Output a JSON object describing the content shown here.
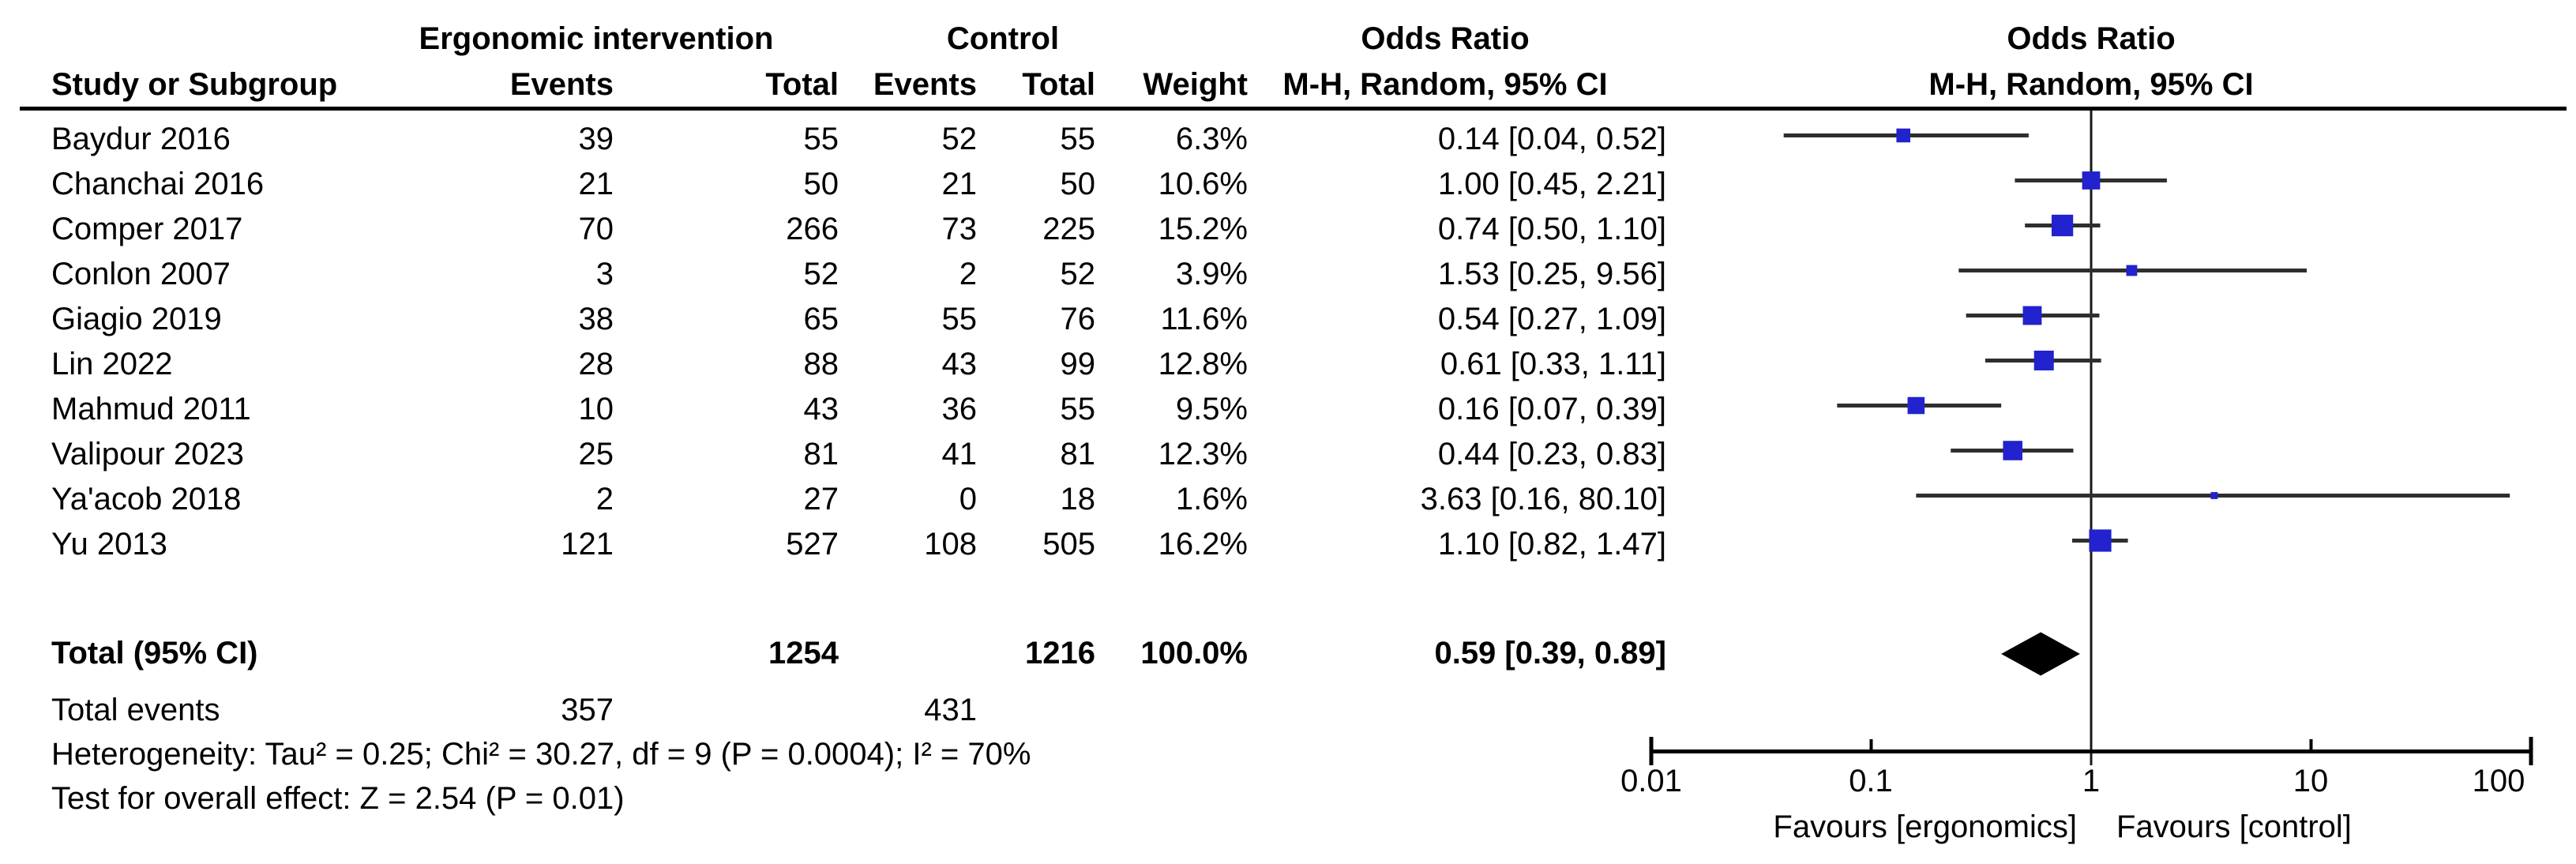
{
  "chart_data": {
    "type": "forest_plot",
    "effect_measure": "Odds Ratio",
    "model": "Mantel-Haenszel random effects",
    "headers": {
      "intervention_group": "Ergonomic intervention",
      "control_group": "Control",
      "odds_ratio_text_col": "Odds Ratio",
      "odds_ratio_plot_col": "Odds Ratio",
      "study": "Study or Subgroup",
      "events_1": "Events",
      "total_1": "Total",
      "events_2": "Events",
      "total_2": "Total",
      "weight": "Weight",
      "method_text_col": "M-H, Random, 95% CI",
      "method_plot_col": "M-H, Random, 95% CI"
    },
    "studies": [
      {
        "study": "Baydur 2016",
        "int_events": "39",
        "int_total": "55",
        "ctrl_events": "52",
        "ctrl_total": "55",
        "weight": "6.3%",
        "weight_pct": 6.3,
        "or": 0.14,
        "ci_low": 0.04,
        "ci_high": 0.52,
        "or_ci_text": "0.14 [0.04, 0.52]"
      },
      {
        "study": "Chanchai 2016",
        "int_events": "21",
        "int_total": "50",
        "ctrl_events": "21",
        "ctrl_total": "50",
        "weight": "10.6%",
        "weight_pct": 10.6,
        "or": 1.0,
        "ci_low": 0.45,
        "ci_high": 2.21,
        "or_ci_text": "1.00 [0.45, 2.21]"
      },
      {
        "study": "Comper 2017",
        "int_events": "70",
        "int_total": "266",
        "ctrl_events": "73",
        "ctrl_total": "225",
        "weight": "15.2%",
        "weight_pct": 15.2,
        "or": 0.74,
        "ci_low": 0.5,
        "ci_high": 1.1,
        "or_ci_text": "0.74 [0.50, 1.10]"
      },
      {
        "study": "Conlon 2007",
        "int_events": "3",
        "int_total": "52",
        "ctrl_events": "2",
        "ctrl_total": "52",
        "weight": "3.9%",
        "weight_pct": 3.9,
        "or": 1.53,
        "ci_low": 0.25,
        "ci_high": 9.56,
        "or_ci_text": "1.53 [0.25, 9.56]"
      },
      {
        "study": "Giagio 2019",
        "int_events": "38",
        "int_total": "65",
        "ctrl_events": "55",
        "ctrl_total": "76",
        "weight": "11.6%",
        "weight_pct": 11.6,
        "or": 0.54,
        "ci_low": 0.27,
        "ci_high": 1.09,
        "or_ci_text": "0.54 [0.27, 1.09]"
      },
      {
        "study": "Lin 2022",
        "int_events": "28",
        "int_total": "88",
        "ctrl_events": "43",
        "ctrl_total": "99",
        "weight": "12.8%",
        "weight_pct": 12.8,
        "or": 0.61,
        "ci_low": 0.33,
        "ci_high": 1.11,
        "or_ci_text": "0.61 [0.33, 1.11]"
      },
      {
        "study": "Mahmud 2011",
        "int_events": "10",
        "int_total": "43",
        "ctrl_events": "36",
        "ctrl_total": "55",
        "weight": "9.5%",
        "weight_pct": 9.5,
        "or": 0.16,
        "ci_low": 0.07,
        "ci_high": 0.39,
        "or_ci_text": "0.16 [0.07, 0.39]"
      },
      {
        "study": "Valipour 2023",
        "int_events": "25",
        "int_total": "81",
        "ctrl_events": "41",
        "ctrl_total": "81",
        "weight": "12.3%",
        "weight_pct": 12.3,
        "or": 0.44,
        "ci_low": 0.23,
        "ci_high": 0.83,
        "or_ci_text": "0.44 [0.23, 0.83]"
      },
      {
        "study": "Ya'acob 2018",
        "int_events": "2",
        "int_total": "27",
        "ctrl_events": "0",
        "ctrl_total": "18",
        "weight": "1.6%",
        "weight_pct": 1.6,
        "or": 3.63,
        "ci_low": 0.16,
        "ci_high": 80.1,
        "or_ci_text": "3.63 [0.16, 80.10]"
      },
      {
        "study": "Yu 2013",
        "int_events": "121",
        "int_total": "527",
        "ctrl_events": "108",
        "ctrl_total": "505",
        "weight": "16.2%",
        "weight_pct": 16.2,
        "or": 1.1,
        "ci_low": 0.82,
        "ci_high": 1.47,
        "or_ci_text": "1.10 [0.82, 1.47]"
      }
    ],
    "total_row": {
      "label": "Total (95% CI)",
      "int_total": "1254",
      "ctrl_total": "1216",
      "weight": "100.0%",
      "or": 0.59,
      "ci_low": 0.39,
      "ci_high": 0.89,
      "or_ci_text": "0.59 [0.39, 0.89]"
    },
    "total_events": {
      "label": "Total events",
      "int_events": "357",
      "ctrl_events": "431"
    },
    "footnotes": {
      "heterogeneity": "Heterogeneity: Tau² = 0.25; Chi² = 30.27, df = 9 (P = 0.0004); I² = 70%",
      "overall_effect": "Test for overall effect: Z = 2.54 (P = 0.01)"
    },
    "axis": {
      "scale": "log",
      "min": 0.01,
      "max": 100,
      "ticks": [
        0.01,
        0.1,
        1,
        10,
        100
      ],
      "tick_labels": [
        "0.01",
        "0.1",
        "1",
        "10",
        "100"
      ],
      "favours_left": "Favours [ergonomics]",
      "favours_right": "Favours [control]"
    },
    "colors": {
      "square": "#2222CE",
      "ci_line": "#2e2e2e",
      "diamond": "#000000",
      "axis": "#000000"
    }
  }
}
